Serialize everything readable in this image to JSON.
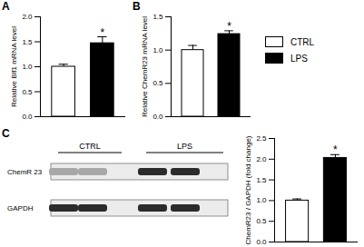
{
  "chart_data": [
    {
      "type": "bar",
      "title": "A",
      "y_label": "Relative Blf1 mRNA level",
      "categories": [
        null
      ],
      "series": [
        {
          "name": "CTRL",
          "color": "#ffffff",
          "values": [
            1.0
          ],
          "errors": [
            0.05
          ]
        },
        {
          "name": "LPS",
          "color": "#000000",
          "values": [
            1.47
          ],
          "errors": [
            0.13
          ],
          "annotations": [
            "*"
          ]
        }
      ],
      "ylim": [
        0,
        2
      ],
      "yticks": [
        {
          "value": 0,
          "label": "0.0"
        },
        {
          "value": 0.5,
          "label": "0.5"
        },
        {
          "value": 1,
          "label": "1.0"
        },
        {
          "value": 1.5,
          "label": "1.5"
        },
        {
          "value": 2,
          "label": "2.0"
        }
      ],
      "tick_labels": "y"
    },
    {
      "type": "bar",
      "title": "B",
      "y_label": "Relative ChemR23 mRNA level",
      "categories": [
        null
      ],
      "series": [
        {
          "name": "CTRL",
          "color": "#ffffff",
          "values": [
            1.0
          ],
          "errors": [
            0.07
          ]
        },
        {
          "name": "LPS",
          "color": "#000000",
          "values": [
            1.24
          ],
          "errors": [
            0.05
          ],
          "annotations": [
            "*"
          ]
        }
      ],
      "ylim": [
        0,
        1.5
      ],
      "yticks": [
        {
          "value": 0,
          "label": "0.0"
        },
        {
          "value": 0.5,
          "label": "0.5"
        },
        {
          "value": 1,
          "label": "1.0"
        },
        {
          "value": 1.5,
          "label": "1.5"
        }
      ],
      "tick_labels": "y",
      "legend": "right"
    },
    {
      "type": "bar",
      "title": "C",
      "y_label": "ChemR23 / GAPDH (fold change)",
      "categories": [
        null
      ],
      "series": [
        {
          "name": "CTRL",
          "color": "#ffffff",
          "values": [
            1.0
          ],
          "errors": [
            0.04
          ]
        },
        {
          "name": "LPS",
          "color": "#000000",
          "values": [
            2.03
          ],
          "errors": [
            0.08
          ],
          "annotations": [
            "*"
          ]
        }
      ],
      "ylim": [
        0,
        2.5
      ],
      "yticks": [
        {
          "value": 0,
          "label": "0.0"
        },
        {
          "value": 0.5,
          "label": "0.5"
        },
        {
          "value": 1,
          "label": "1.0"
        },
        {
          "value": 1.5,
          "label": "1.5"
        },
        {
          "value": 2,
          "label": "2.0"
        },
        {
          "value": 2.5,
          "label": "2.5"
        }
      ],
      "tick_labels": "y"
    }
  ],
  "blot": {
    "groups": [
      "CTRL",
      "LPS"
    ],
    "rows": [
      "ChemR 23",
      "GAPDH"
    ]
  }
}
